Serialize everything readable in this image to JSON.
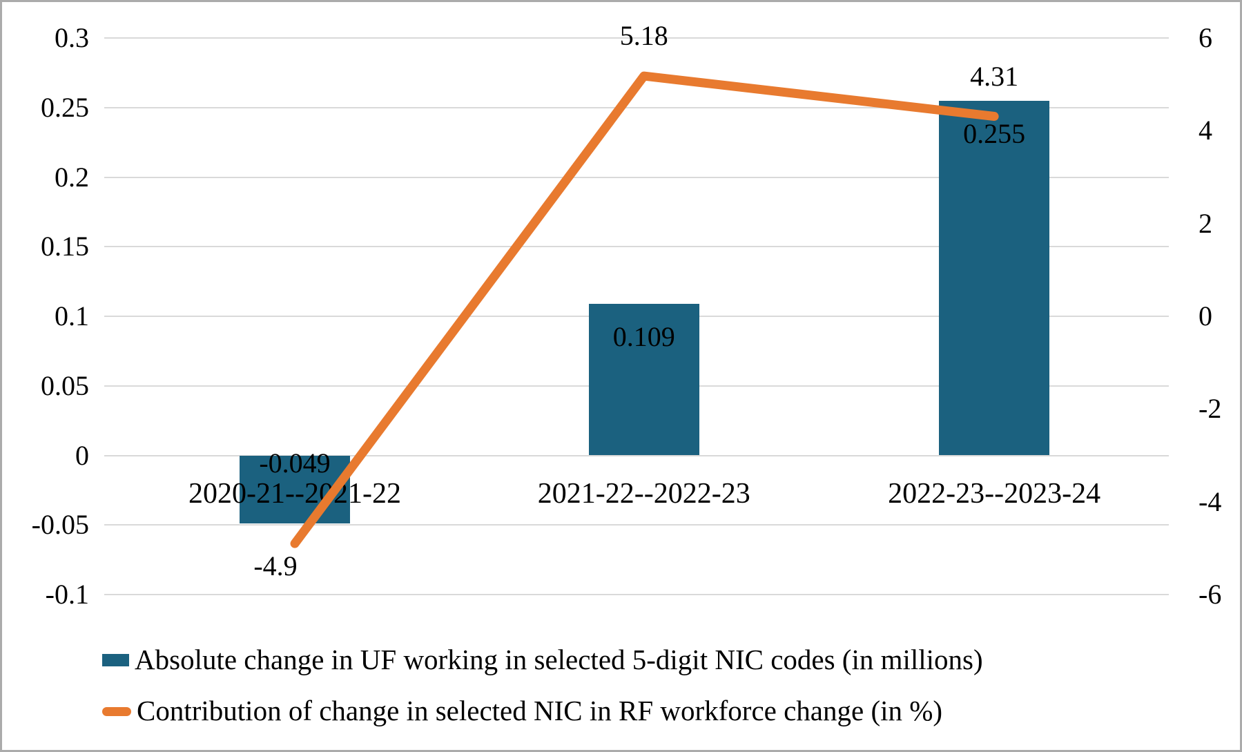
{
  "chart_data": {
    "type": "combo",
    "categories": [
      "2020-21--2021-22",
      "2021-22--2022-23",
      "2022-23--2023-24"
    ],
    "series": [
      {
        "name": "Absolute change in UF working in selected 5-digit NIC codes (in millions)",
        "type": "bar",
        "axis": "left",
        "color": "#1b617f",
        "values": [
          -0.049,
          0.109,
          0.255
        ],
        "labels": [
          "-0.049",
          "0.109",
          "0.255"
        ]
      },
      {
        "name": "Contribution of change in selected NIC in RF workforce change (in %)",
        "type": "line",
        "axis": "right",
        "color": "#e87a2f",
        "values": [
          -4.9,
          5.18,
          4.31
        ],
        "labels": [
          "-4.9",
          "5.18",
          "4.31"
        ]
      }
    ],
    "left_axis": {
      "min": -0.1,
      "max": 0.3,
      "ticks": [
        "0.3",
        "0.25",
        "0.2",
        "0.15",
        "0.1",
        "0.05",
        "0",
        "-0.05",
        "-0.1"
      ]
    },
    "right_axis": {
      "min": -6,
      "max": 6,
      "ticks": [
        "6",
        "4",
        "2",
        "0",
        "-2",
        "-4",
        "-6"
      ]
    },
    "grid": true,
    "legend_position": "bottom-left",
    "colors": {
      "gridline": "#d9d9d9",
      "bar": "#1b617f",
      "line": "#e87a2f",
      "text": "#000000",
      "background": "#ffffff",
      "frame_border": "#ababab"
    }
  }
}
